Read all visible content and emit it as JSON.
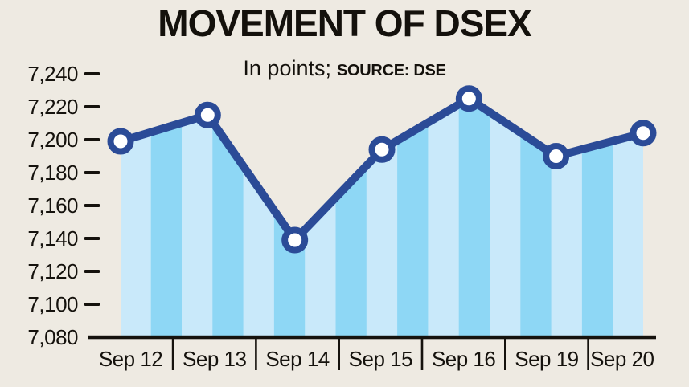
{
  "title": "MOVEMENT OF DSEX",
  "subtitle": {
    "units": "In points;",
    "source": "SOURCE: DSE"
  },
  "colors": {
    "background": "#EEEAE2",
    "line": "#2B4B97",
    "marker_fill": "#FFFFFF",
    "stripe_light": "#C9E9FA",
    "stripe_dark": "#8ED7F5",
    "axis": "#15120D",
    "text": "#15120D"
  },
  "chart_data": {
    "type": "line",
    "title": "MOVEMENT OF DSEX",
    "subtitle": "In points; SOURCE: DSE",
    "categories": [
      "Sep 12",
      "Sep 13",
      "Sep 14",
      "Sep 15",
      "Sep 16",
      "Sep 19",
      "Sep 20"
    ],
    "values": [
      7199,
      7215,
      7139,
      7194,
      7225,
      7190,
      7204
    ],
    "xlabel": "",
    "ylabel": "",
    "ylim": [
      7080,
      7240
    ],
    "ytick_interval": 20,
    "ytick_labels": [
      "7,240",
      "7,220",
      "7,200",
      "7,180",
      "7,160",
      "7,140",
      "7,120",
      "7,100",
      "7,080"
    ],
    "grid": false,
    "legend": false,
    "marker": "circle",
    "area_fill": "striped-vertical-bands"
  }
}
